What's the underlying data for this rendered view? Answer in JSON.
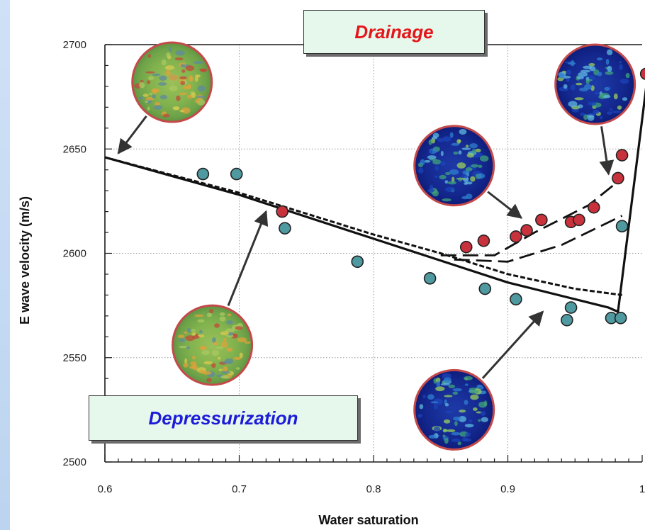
{
  "colors": {
    "drainage_text": "#e5161b",
    "depressurization_text": "#1c1cd8",
    "drainage_points": "#c8323c",
    "depressurization_points": "#4e9aa0",
    "callout_fill": "#e6f8ec",
    "background_band": "#cfe1f6"
  },
  "callouts": {
    "drainage": "Drainage",
    "depressurization": "Depressurization"
  },
  "chart_data": {
    "type": "scatter",
    "xlabel": "Water saturation",
    "ylabel": "E wave velocity (m/s)",
    "xlim": [
      0.6,
      1.0
    ],
    "ylim": [
      2500,
      2700
    ],
    "x_ticks": [
      0.6,
      0.7,
      0.8,
      0.9,
      1.0
    ],
    "x_tick_labels": [
      "0.6",
      "0.7",
      "0.8",
      "0.9",
      "1"
    ],
    "y_ticks": [
      2500,
      2550,
      2600,
      2650,
      2700
    ],
    "y_tick_labels": [
      "2500",
      "2550",
      "2600",
      "2650",
      "2700"
    ],
    "grid": true,
    "series": [
      {
        "kind": "points",
        "color": "#c8323c",
        "x": [
          0.732,
          0.869,
          0.882,
          0.906,
          0.914,
          0.925,
          0.947,
          0.953,
          0.964,
          0.982,
          0.985,
          1.003
        ],
        "y": [
          2620,
          2603,
          2606,
          2608,
          2611,
          2616,
          2615,
          2616,
          2622,
          2636,
          2647,
          2686
        ]
      },
      {
        "kind": "points",
        "color": "#4e9aa0",
        "x": [
          0.673,
          0.698,
          0.734,
          0.788,
          0.842,
          0.883,
          0.906,
          0.944,
          0.947,
          0.977,
          0.984,
          0.985
        ],
        "y": [
          2638,
          2638,
          2612,
          2596,
          2588,
          2583,
          2578,
          2568,
          2574,
          2569,
          2569,
          2613
        ]
      },
      {
        "kind": "line",
        "style": "solid",
        "x": [
          0.6,
          0.7,
          0.8,
          0.9,
          0.975,
          0.982,
          1.005
        ],
        "y": [
          2646,
          2628,
          2607,
          2586,
          2574,
          2572,
          2690
        ]
      },
      {
        "kind": "line",
        "style": "dashed",
        "x": [
          0.6,
          0.7,
          0.8,
          0.85,
          0.9,
          0.95,
          0.985
        ],
        "y": [
          2646,
          2629,
          2609,
          2600,
          2590,
          2583,
          2580
        ]
      },
      {
        "kind": "line",
        "style": "long-dash",
        "x": [
          0.85,
          0.89,
          0.92,
          0.96,
          0.985
        ],
        "y": [
          2599,
          2599,
          2610,
          2623,
          2636
        ]
      },
      {
        "kind": "line",
        "style": "long-dash",
        "x": [
          0.86,
          0.9,
          0.94,
          0.985
        ],
        "y": [
          2597,
          2596,
          2604,
          2618
        ]
      }
    ],
    "annotations": [
      {
        "name": "depressurization-scan-top",
        "fill": "green",
        "x": 0.65,
        "y": 2682,
        "arrow_to_x": 0.61,
        "arrow_to_y": 2648
      },
      {
        "name": "drainage-scan-top",
        "fill": "blue",
        "x": 0.965,
        "y": 2681,
        "arrow_to_x": 0.975,
        "arrow_to_y": 2638
      },
      {
        "name": "drainage-scan-middle",
        "fill": "blue",
        "x": 0.86,
        "y": 2642,
        "arrow_to_x": 0.91,
        "arrow_to_y": 2617
      },
      {
        "name": "depressurization-scan-bottom",
        "fill": "green",
        "x": 0.68,
        "y": 2556,
        "arrow_to_x": 0.72,
        "arrow_to_y": 2620
      },
      {
        "name": "drainage-scan-bottom",
        "fill": "blue",
        "x": 0.86,
        "y": 2525,
        "arrow_to_x": 0.926,
        "arrow_to_y": 2572
      }
    ]
  }
}
